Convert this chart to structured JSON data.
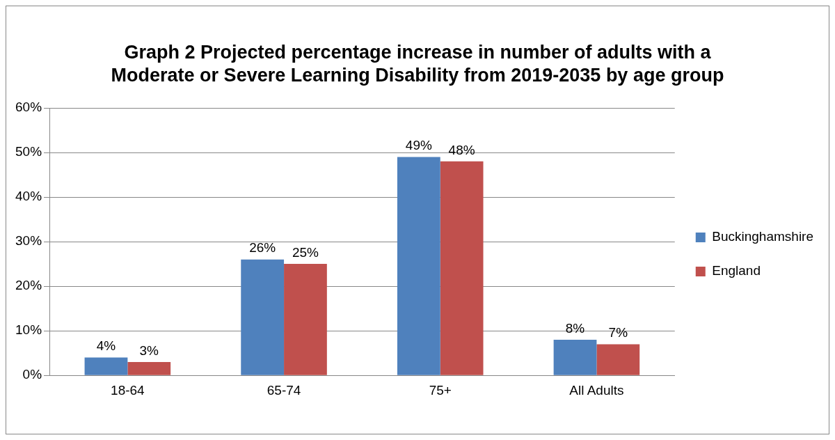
{
  "chart_data": {
    "type": "bar",
    "title": "Graph 2 Projected percentage increase in number of adults with a Moderate or Severe Learning Disability from 2019-2035 by age group",
    "categories": [
      "18-64",
      "65-74",
      "75+",
      "All Adults"
    ],
    "series": [
      {
        "name": "Buckinghamshire",
        "color": "#4f81bd",
        "values": [
          4,
          26,
          49,
          8
        ],
        "value_labels": [
          "4%",
          "26%",
          "49%",
          "8%"
        ]
      },
      {
        "name": "England",
        "color": "#c0504d",
        "values": [
          3,
          25,
          48,
          7
        ],
        "value_labels": [
          "3%",
          "25%",
          "48%",
          "7%"
        ]
      }
    ],
    "ylim": [
      0,
      60
    ],
    "yticks": [
      {
        "value": 0,
        "label": "0%"
      },
      {
        "value": 10,
        "label": "10%"
      },
      {
        "value": 20,
        "label": "20%"
      },
      {
        "value": 30,
        "label": "30%"
      },
      {
        "value": 40,
        "label": "40%"
      },
      {
        "value": 50,
        "label": "50%"
      },
      {
        "value": 60,
        "label": "60%"
      }
    ],
    "grid": "y",
    "legend": "right"
  }
}
